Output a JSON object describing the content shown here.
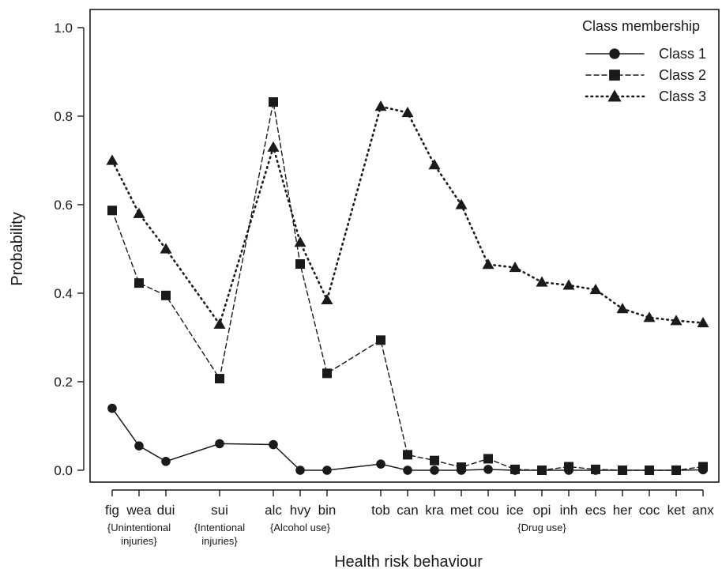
{
  "chart_data": {
    "type": "line",
    "xlabel": "Health risk behaviour",
    "ylabel": "Probability",
    "ylim": [
      0,
      1.0
    ],
    "yticks": [
      "0.0",
      "0.2",
      "0.4",
      "0.6",
      "0.8",
      "1.0"
    ],
    "ytick_values": [
      0,
      0.2,
      0.4,
      0.6,
      0.8,
      1.0
    ],
    "categories": [
      "fig",
      "wea",
      "dui",
      "sui",
      "alc",
      "hvy",
      "bin",
      "tob",
      "can",
      "kra",
      "met",
      "cou",
      "ice",
      "opi",
      "inh",
      "ecs",
      "her",
      "coc",
      "ket",
      "anx"
    ],
    "groups": [
      {
        "label_lines": [
          "{Unintentional",
          "injuries}"
        ]
      },
      {
        "label_lines": [
          "{Intentional",
          "injuries}"
        ]
      },
      {
        "label_lines": [
          "{Alcohol use}"
        ]
      },
      {
        "label_lines": [
          "{Drug use}"
        ]
      }
    ],
    "legend_title": "Class membership",
    "legend_position": "top-right",
    "series": [
      {
        "name": "Class 1",
        "marker": "circle",
        "linestyle": "solid",
        "values": [
          0.14,
          0.055,
          0.02,
          0.06,
          0.058,
          0.0,
          0.0,
          0.014,
          0.0,
          0.0,
          0.0,
          0.002,
          0.0,
          0.0,
          0.0,
          0.0,
          0.0,
          0.0,
          0.0,
          0.001
        ]
      },
      {
        "name": "Class 2",
        "marker": "square",
        "linestyle": "dashed",
        "values": [
          0.587,
          0.423,
          0.395,
          0.207,
          0.832,
          0.466,
          0.219,
          0.294,
          0.035,
          0.022,
          0.007,
          0.026,
          0.002,
          0.0,
          0.008,
          0.002,
          0.0,
          0.0,
          0.0,
          0.008
        ]
      },
      {
        "name": "Class 3",
        "marker": "triangle",
        "linestyle": "dotted",
        "values": [
          0.7,
          0.58,
          0.5,
          0.33,
          0.73,
          0.515,
          0.385,
          0.822,
          0.808,
          0.69,
          0.6,
          0.465,
          0.458,
          0.425,
          0.418,
          0.408,
          0.365,
          0.345,
          0.338,
          0.333
        ]
      }
    ]
  }
}
